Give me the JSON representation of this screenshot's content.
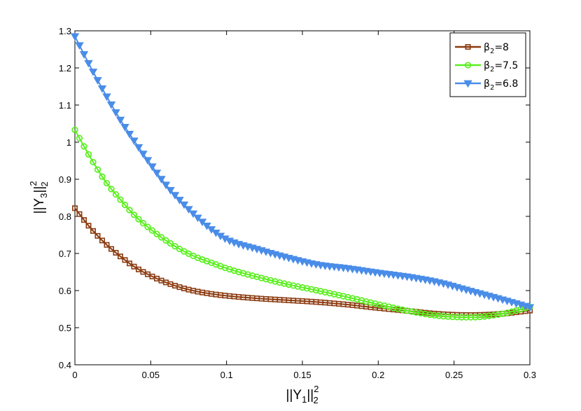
{
  "chart_data": {
    "type": "line",
    "title": "",
    "xlabel": {
      "base": "||Y",
      "sub1": "1",
      "mid": "||",
      "sup": "2",
      "sub2": "2"
    },
    "ylabel": {
      "base": "||Y",
      "sub1": "3",
      "mid": "||",
      "sup": "2",
      "sub2": "2"
    },
    "xlim": [
      0,
      0.3
    ],
    "ylim": [
      0.4,
      1.3
    ],
    "xticks": [
      "0",
      "0.05",
      "0.1",
      "0.15",
      "0.2",
      "0.25",
      "0.3"
    ],
    "yticks": [
      "0.4",
      "0.5",
      "0.6",
      "0.7",
      "0.8",
      "0.9",
      "1",
      "1.1",
      "1.2",
      "1.3"
    ],
    "grid": false,
    "legend_position": "top-right",
    "series": [
      {
        "name": "β2=8",
        "legend": {
          "pre": "β",
          "sub": "2",
          "post": "=8"
        },
        "color": "#8b3a0f",
        "marker": "square",
        "x": [
          0,
          0.01,
          0.02,
          0.03,
          0.04,
          0.05,
          0.06,
          0.07,
          0.08,
          0.09,
          0.1,
          0.12,
          0.14,
          0.16,
          0.18,
          0.2,
          0.22,
          0.24,
          0.26,
          0.28,
          0.3
        ],
        "y": [
          0.822,
          0.77,
          0.727,
          0.692,
          0.662,
          0.64,
          0.622,
          0.608,
          0.598,
          0.591,
          0.586,
          0.579,
          0.574,
          0.569,
          0.562,
          0.553,
          0.545,
          0.537,
          0.534,
          0.537,
          0.546
        ]
      },
      {
        "name": "β2=7.5",
        "legend": {
          "pre": "β",
          "sub": "2",
          "post": "=7.5"
        },
        "color": "#5aef1f",
        "marker": "circle",
        "x": [
          0,
          0.01,
          0.02,
          0.03,
          0.04,
          0.05,
          0.06,
          0.07,
          0.08,
          0.09,
          0.1,
          0.12,
          0.14,
          0.16,
          0.18,
          0.2,
          0.22,
          0.24,
          0.26,
          0.28,
          0.3
        ],
        "y": [
          1.033,
          0.96,
          0.895,
          0.845,
          0.8,
          0.765,
          0.735,
          0.71,
          0.69,
          0.675,
          0.66,
          0.637,
          0.617,
          0.6,
          0.582,
          0.563,
          0.545,
          0.532,
          0.528,
          0.536,
          0.556
        ]
      },
      {
        "name": "β2=6.8",
        "legend": {
          "pre": "β",
          "sub": "2",
          "post": "=6.8"
        },
        "color": "#4a8de8",
        "marker": "triangle-down",
        "x": [
          0,
          0.01,
          0.02,
          0.03,
          0.04,
          0.05,
          0.06,
          0.07,
          0.08,
          0.09,
          0.1,
          0.12,
          0.14,
          0.16,
          0.18,
          0.2,
          0.22,
          0.24,
          0.26,
          0.28,
          0.3
        ],
        "y": [
          1.285,
          1.205,
          1.13,
          1.06,
          0.998,
          0.94,
          0.885,
          0.84,
          0.8,
          0.765,
          0.738,
          0.712,
          0.689,
          0.67,
          0.66,
          0.648,
          0.637,
          0.622,
          0.6,
          0.578,
          0.555
        ]
      }
    ]
  }
}
